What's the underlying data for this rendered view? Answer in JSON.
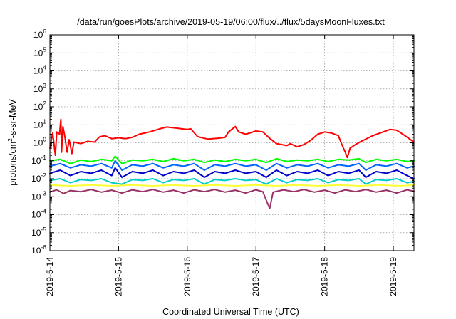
{
  "chart_data": {
    "type": "line",
    "title": "/data/run/goesPlots/archive/2019-05-19/06:00/flux/../flux/5daysMoonFluxes.txt",
    "xlabel": "Coordinated Universal Time (UTC)",
    "ylabel_parts": [
      "protons/cm",
      "2",
      "-s-sr-MeV"
    ],
    "x_range_days": [
      0,
      5.3
    ],
    "y_scale": "log",
    "ylim": [
      1e-06,
      1000000.0
    ],
    "grid": true,
    "x_ticks": [
      {
        "label": "2019-5-14",
        "day": 0
      },
      {
        "label": "2019-5-15",
        "day": 1
      },
      {
        "label": "2019-5-16",
        "day": 2
      },
      {
        "label": "2019-5-17",
        "day": 3
      },
      {
        "label": "2019-5-18",
        "day": 4
      },
      {
        "label": "2019-5-19",
        "day": 5
      }
    ],
    "y_ticks": [
      {
        "base": "10",
        "exp": "6",
        "value": 1000000.0
      },
      {
        "base": "10",
        "exp": "5",
        "value": 100000.0
      },
      {
        "base": "10",
        "exp": "4",
        "value": 10000.0
      },
      {
        "base": "10",
        "exp": "3",
        "value": 1000.0
      },
      {
        "base": "10",
        "exp": "2",
        "value": 100.0
      },
      {
        "base": "10",
        "exp": "1",
        "value": 10.0
      },
      {
        "base": "10",
        "exp": "0",
        "value": 1.0
      },
      {
        "base": "10",
        "exp": "-1",
        "value": 0.1
      },
      {
        "base": "10",
        "exp": "-2",
        "value": 0.01
      },
      {
        "base": "10",
        "exp": "-3",
        "value": 0.001
      },
      {
        "base": "10",
        "exp": "-4",
        "value": 0.0001
      },
      {
        "base": "10",
        "exp": "-5",
        "value": 1e-05
      },
      {
        "base": "10",
        "exp": "-6",
        "value": 1e-06
      }
    ],
    "series": [
      {
        "color": "#ff0000",
        "points": [
          [
            0,
            0.5
          ],
          [
            0.04,
            3.5
          ],
          [
            0.08,
            0.2
          ],
          [
            0.1,
            4
          ],
          [
            0.14,
            3
          ],
          [
            0.16,
            20
          ],
          [
            0.17,
            0.3
          ],
          [
            0.19,
            8
          ],
          [
            0.22,
            2
          ],
          [
            0.25,
            0.3
          ],
          [
            0.28,
            1.5
          ],
          [
            0.32,
            0.25
          ],
          [
            0.35,
            1.1
          ],
          [
            0.45,
            0.9
          ],
          [
            0.55,
            1.2
          ],
          [
            0.65,
            1.1
          ],
          [
            0.72,
            2.1
          ],
          [
            0.8,
            2.5
          ],
          [
            0.9,
            1.7
          ],
          [
            1.0,
            1.9
          ],
          [
            1.1,
            1.7
          ],
          [
            1.2,
            2.0
          ],
          [
            1.3,
            3
          ],
          [
            1.45,
            4
          ],
          [
            1.6,
            6
          ],
          [
            1.7,
            7.5
          ],
          [
            1.85,
            6.5
          ],
          [
            2.0,
            5.5
          ],
          [
            2.05,
            6
          ],
          [
            2.15,
            2.2
          ],
          [
            2.3,
            1.6
          ],
          [
            2.45,
            1.8
          ],
          [
            2.55,
            2
          ],
          [
            2.6,
            4
          ],
          [
            2.7,
            8
          ],
          [
            2.75,
            4
          ],
          [
            2.85,
            3
          ],
          [
            3.0,
            4.5
          ],
          [
            3.1,
            4
          ],
          [
            3.2,
            1.8
          ],
          [
            3.3,
            0.9
          ],
          [
            3.45,
            0.7
          ],
          [
            3.5,
            0.9
          ],
          [
            3.6,
            0.6
          ],
          [
            3.7,
            0.8
          ],
          [
            3.8,
            1.4
          ],
          [
            3.9,
            3
          ],
          [
            4.0,
            4
          ],
          [
            4.1,
            3.5
          ],
          [
            4.2,
            2.5
          ],
          [
            4.25,
            0.8
          ],
          [
            4.3,
            0.3
          ],
          [
            4.33,
            0.15
          ],
          [
            4.37,
            0.5
          ],
          [
            4.45,
            0.8
          ],
          [
            4.55,
            1.3
          ],
          [
            4.7,
            2.5
          ],
          [
            4.85,
            4
          ],
          [
            4.95,
            5.5
          ],
          [
            5.05,
            5
          ],
          [
            5.15,
            2.8
          ],
          [
            5.25,
            1.5
          ],
          [
            5.3,
            1.1
          ]
        ]
      },
      {
        "color": "#00ff00",
        "points": [
          [
            0,
            0.1
          ],
          [
            0.15,
            0.12
          ],
          [
            0.3,
            0.07
          ],
          [
            0.45,
            0.11
          ],
          [
            0.6,
            0.09
          ],
          [
            0.75,
            0.12
          ],
          [
            0.9,
            0.1
          ],
          [
            0.95,
            0.18
          ],
          [
            1.05,
            0.07
          ],
          [
            1.2,
            0.11
          ],
          [
            1.35,
            0.1
          ],
          [
            1.5,
            0.12
          ],
          [
            1.65,
            0.09
          ],
          [
            1.8,
            0.13
          ],
          [
            1.95,
            0.1
          ],
          [
            2.1,
            0.12
          ],
          [
            2.25,
            0.08
          ],
          [
            2.4,
            0.11
          ],
          [
            2.55,
            0.09
          ],
          [
            2.7,
            0.12
          ],
          [
            2.85,
            0.1
          ],
          [
            3.0,
            0.12
          ],
          [
            3.15,
            0.08
          ],
          [
            3.3,
            0.13
          ],
          [
            3.45,
            0.09
          ],
          [
            3.6,
            0.11
          ],
          [
            3.75,
            0.1
          ],
          [
            3.9,
            0.12
          ],
          [
            4.05,
            0.09
          ],
          [
            4.2,
            0.12
          ],
          [
            4.35,
            0.11
          ],
          [
            4.5,
            0.13
          ],
          [
            4.6,
            0.08
          ],
          [
            4.75,
            0.12
          ],
          [
            4.9,
            0.1
          ],
          [
            5.05,
            0.12
          ],
          [
            5.2,
            0.09
          ],
          [
            5.3,
            0.1
          ]
        ]
      },
      {
        "color": "#0066ff",
        "points": [
          [
            0,
            0.05
          ],
          [
            0.15,
            0.07
          ],
          [
            0.3,
            0.04
          ],
          [
            0.45,
            0.06
          ],
          [
            0.6,
            0.05
          ],
          [
            0.75,
            0.07
          ],
          [
            0.9,
            0.04
          ],
          [
            0.95,
            0.1
          ],
          [
            1.05,
            0.03
          ],
          [
            1.2,
            0.06
          ],
          [
            1.35,
            0.05
          ],
          [
            1.5,
            0.07
          ],
          [
            1.65,
            0.04
          ],
          [
            1.8,
            0.06
          ],
          [
            1.95,
            0.05
          ],
          [
            2.1,
            0.07
          ],
          [
            2.25,
            0.03
          ],
          [
            2.4,
            0.06
          ],
          [
            2.55,
            0.05
          ],
          [
            2.7,
            0.07
          ],
          [
            2.85,
            0.05
          ],
          [
            3.0,
            0.06
          ],
          [
            3.15,
            0.03
          ],
          [
            3.3,
            0.07
          ],
          [
            3.45,
            0.04
          ],
          [
            3.6,
            0.06
          ],
          [
            3.75,
            0.05
          ],
          [
            3.9,
            0.07
          ],
          [
            4.05,
            0.04
          ],
          [
            4.2,
            0.06
          ],
          [
            4.35,
            0.05
          ],
          [
            4.5,
            0.07
          ],
          [
            4.6,
            0.03
          ],
          [
            4.75,
            0.06
          ],
          [
            4.9,
            0.05
          ],
          [
            5.05,
            0.07
          ],
          [
            5.2,
            0.04
          ],
          [
            5.3,
            0.05
          ]
        ]
      },
      {
        "color": "#0000cc",
        "points": [
          [
            0,
            0.02
          ],
          [
            0.15,
            0.03
          ],
          [
            0.3,
            0.015
          ],
          [
            0.45,
            0.025
          ],
          [
            0.6,
            0.02
          ],
          [
            0.75,
            0.03
          ],
          [
            0.9,
            0.015
          ],
          [
            0.95,
            0.04
          ],
          [
            1.05,
            0.012
          ],
          [
            1.2,
            0.025
          ],
          [
            1.35,
            0.02
          ],
          [
            1.5,
            0.03
          ],
          [
            1.65,
            0.015
          ],
          [
            1.8,
            0.025
          ],
          [
            1.95,
            0.02
          ],
          [
            2.1,
            0.03
          ],
          [
            2.25,
            0.012
          ],
          [
            2.4,
            0.025
          ],
          [
            2.55,
            0.02
          ],
          [
            2.7,
            0.03
          ],
          [
            2.85,
            0.02
          ],
          [
            3.0,
            0.025
          ],
          [
            3.15,
            0.012
          ],
          [
            3.3,
            0.03
          ],
          [
            3.45,
            0.015
          ],
          [
            3.6,
            0.025
          ],
          [
            3.75,
            0.02
          ],
          [
            3.9,
            0.03
          ],
          [
            4.05,
            0.015
          ],
          [
            4.2,
            0.025
          ],
          [
            4.35,
            0.02
          ],
          [
            4.5,
            0.03
          ],
          [
            4.6,
            0.012
          ],
          [
            4.75,
            0.025
          ],
          [
            4.9,
            0.02
          ],
          [
            5.05,
            0.03
          ],
          [
            5.2,
            0.015
          ],
          [
            5.3,
            0.01
          ]
        ]
      },
      {
        "color": "#00cccc",
        "points": [
          [
            0,
            0.008
          ],
          [
            0.15,
            0.01
          ],
          [
            0.3,
            0.006
          ],
          [
            0.45,
            0.009
          ],
          [
            0.6,
            0.008
          ],
          [
            0.75,
            0.01
          ],
          [
            0.9,
            0.006
          ],
          [
            1.05,
            0.005
          ],
          [
            1.2,
            0.009
          ],
          [
            1.35,
            0.008
          ],
          [
            1.5,
            0.01
          ],
          [
            1.65,
            0.006
          ],
          [
            1.8,
            0.009
          ],
          [
            1.95,
            0.008
          ],
          [
            2.1,
            0.01
          ],
          [
            2.25,
            0.005
          ],
          [
            2.4,
            0.009
          ],
          [
            2.55,
            0.008
          ],
          [
            2.7,
            0.01
          ],
          [
            2.85,
            0.008
          ],
          [
            3.0,
            0.009
          ],
          [
            3.15,
            0.005
          ],
          [
            3.3,
            0.01
          ],
          [
            3.45,
            0.006
          ],
          [
            3.6,
            0.009
          ],
          [
            3.75,
            0.008
          ],
          [
            3.9,
            0.01
          ],
          [
            4.05,
            0.006
          ],
          [
            4.2,
            0.009
          ],
          [
            4.35,
            0.008
          ],
          [
            4.5,
            0.01
          ],
          [
            4.6,
            0.005
          ],
          [
            4.75,
            0.009
          ],
          [
            4.9,
            0.008
          ],
          [
            5.05,
            0.01
          ],
          [
            5.2,
            0.006
          ],
          [
            5.3,
            0.007
          ]
        ]
      },
      {
        "color": "#ffff33",
        "points": [
          [
            0,
            0.0045
          ],
          [
            0.3,
            0.004
          ],
          [
            0.6,
            0.0045
          ],
          [
            0.9,
            0.004
          ],
          [
            1.2,
            0.0045
          ],
          [
            1.5,
            0.004
          ],
          [
            1.8,
            0.0045
          ],
          [
            2.1,
            0.004
          ],
          [
            2.4,
            0.0045
          ],
          [
            2.7,
            0.004
          ],
          [
            3.0,
            0.0045
          ],
          [
            3.3,
            0.004
          ],
          [
            3.6,
            0.0045
          ],
          [
            3.9,
            0.004
          ],
          [
            4.2,
            0.0045
          ],
          [
            4.5,
            0.004
          ],
          [
            4.8,
            0.0045
          ],
          [
            5.1,
            0.004
          ],
          [
            5.3,
            0.0045
          ]
        ]
      },
      {
        "color": "#993366",
        "points": [
          [
            0,
            0.0018
          ],
          [
            0.1,
            0.0024
          ],
          [
            0.2,
            0.0015
          ],
          [
            0.3,
            0.0022
          ],
          [
            0.45,
            0.0019
          ],
          [
            0.6,
            0.0025
          ],
          [
            0.75,
            0.0018
          ],
          [
            0.9,
            0.0023
          ],
          [
            1.05,
            0.0016
          ],
          [
            1.2,
            0.0024
          ],
          [
            1.35,
            0.0019
          ],
          [
            1.5,
            0.0025
          ],
          [
            1.65,
            0.0018
          ],
          [
            1.8,
            0.0023
          ],
          [
            1.95,
            0.0016
          ],
          [
            2.1,
            0.0024
          ],
          [
            2.25,
            0.0019
          ],
          [
            2.4,
            0.0025
          ],
          [
            2.55,
            0.0018
          ],
          [
            2.7,
            0.0023
          ],
          [
            2.85,
            0.0016
          ],
          [
            3.0,
            0.0024
          ],
          [
            3.1,
            0.0019
          ],
          [
            3.2,
            0.00022
          ],
          [
            3.25,
            0.0018
          ],
          [
            3.4,
            0.0024
          ],
          [
            3.55,
            0.0019
          ],
          [
            3.7,
            0.0025
          ],
          [
            3.85,
            0.0018
          ],
          [
            4.0,
            0.0023
          ],
          [
            4.15,
            0.0016
          ],
          [
            4.3,
            0.0024
          ],
          [
            4.45,
            0.0019
          ],
          [
            4.6,
            0.0025
          ],
          [
            4.75,
            0.0018
          ],
          [
            4.9,
            0.0023
          ],
          [
            5.05,
            0.0016
          ],
          [
            5.2,
            0.0024
          ],
          [
            5.3,
            0.002
          ]
        ]
      }
    ]
  }
}
